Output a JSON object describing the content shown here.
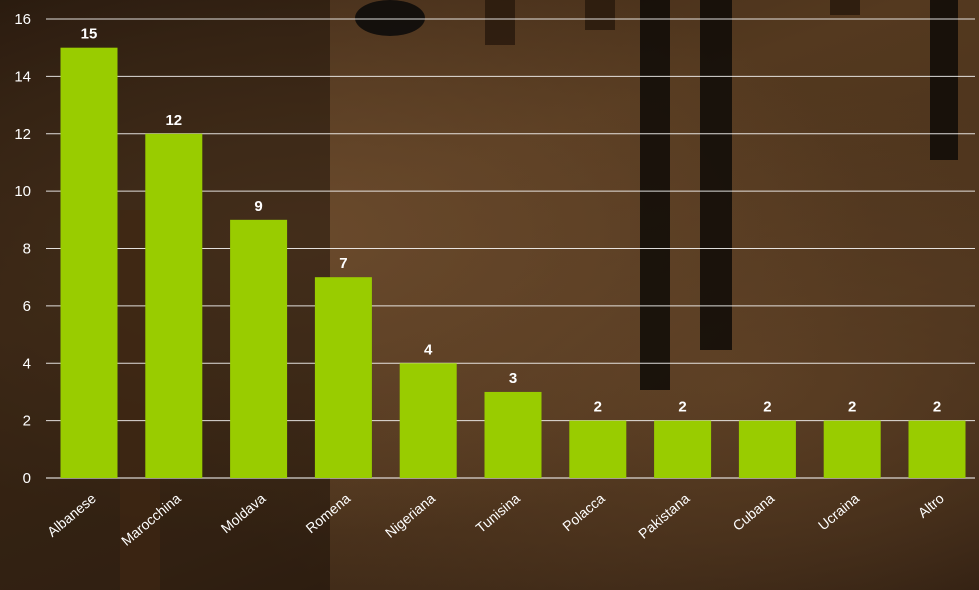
{
  "chart_data": {
    "type": "bar",
    "title": "",
    "xlabel": "",
    "ylabel": "",
    "categories": [
      "Albanese",
      "Marocchina",
      "Moldava",
      "Romena",
      "Nigeriana",
      "Tunisina",
      "Polacca",
      "Pakistana",
      "Cubana",
      "Ucraina",
      "Altro"
    ],
    "values": [
      15,
      12,
      9,
      7,
      4,
      3,
      2,
      2,
      2,
      2,
      2
    ],
    "ylim": [
      0,
      16
    ],
    "yticks": [
      0,
      2,
      4,
      6,
      8,
      10,
      12,
      14,
      16
    ],
    "grid": true,
    "data_labels": true,
    "colors": {
      "bar": "#99cc00",
      "grid": "#ffffff",
      "text": "#ffffff"
    }
  }
}
